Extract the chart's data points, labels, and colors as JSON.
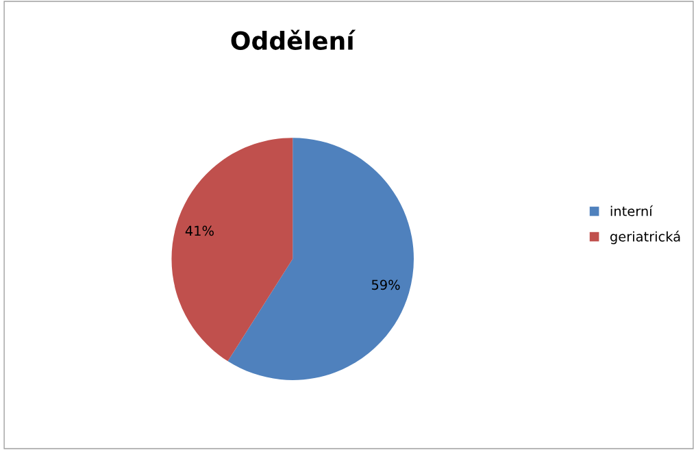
{
  "chart_data": {
    "type": "pie",
    "title": "Oddělení",
    "categories": [
      "interní",
      "geriatrická"
    ],
    "values": [
      59,
      41
    ],
    "colors": [
      "#4f81bd",
      "#c0504d"
    ],
    "value_labels": [
      "59%",
      "41%"
    ],
    "legend": "right"
  }
}
